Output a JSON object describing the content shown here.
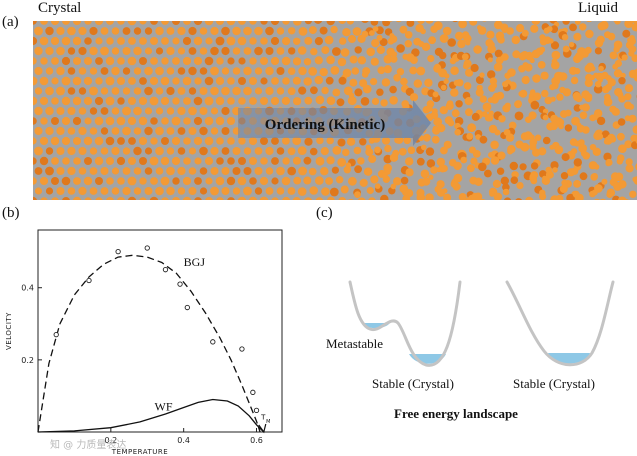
{
  "panel_a": {
    "label": "(a)",
    "left_label": "Crystal",
    "right_label": "Liquid",
    "arrow_label": "Ordering (Kinetic)",
    "colors": {
      "background": "#a4a4a4",
      "particle": "#f39a35",
      "particle_dark": "#e0781b",
      "arrow": "#6f86a8"
    }
  },
  "panel_b": {
    "label": "(b)",
    "chart_data": {
      "type": "line",
      "xlabel": "TEMPERATURE",
      "ylabel": "VELOCITY",
      "xlim": [
        0,
        0.67
      ],
      "ylim": [
        0,
        0.56
      ],
      "x_ticks": [
        0.2,
        0.4,
        0.6
      ],
      "y_ticks": [
        0.2,
        0.4
      ],
      "series": [
        {
          "name": "BGJ",
          "style": "dashed",
          "x": [
            0.0,
            0.03,
            0.06,
            0.1,
            0.14,
            0.18,
            0.22,
            0.26,
            0.3,
            0.34,
            0.38,
            0.42,
            0.46,
            0.5,
            0.53,
            0.56,
            0.58,
            0.6,
            0.61
          ],
          "y": [
            0.0,
            0.19,
            0.3,
            0.38,
            0.43,
            0.465,
            0.485,
            0.49,
            0.485,
            0.47,
            0.44,
            0.39,
            0.33,
            0.26,
            0.2,
            0.13,
            0.08,
            0.03,
            0.0
          ]
        },
        {
          "name": "WF",
          "style": "solid",
          "x": [
            0.0,
            0.1,
            0.2,
            0.28,
            0.35,
            0.4,
            0.44,
            0.48,
            0.52,
            0.55,
            0.58,
            0.6,
            0.62
          ],
          "y": [
            0.0,
            0.003,
            0.012,
            0.028,
            0.05,
            0.068,
            0.082,
            0.09,
            0.086,
            0.072,
            0.045,
            0.02,
            0.0
          ]
        }
      ],
      "points": {
        "x": [
          0.05,
          0.14,
          0.22,
          0.3,
          0.35,
          0.39,
          0.41,
          0.48,
          0.56,
          0.59,
          0.6
        ],
        "y": [
          0.27,
          0.42,
          0.5,
          0.51,
          0.45,
          0.41,
          0.345,
          0.25,
          0.23,
          0.11,
          0.06
        ]
      },
      "annotations": {
        "tm": "T",
        "tm_sub": "M",
        "tm_x": 0.61
      }
    }
  },
  "panel_c": {
    "label": "(c)",
    "metastable": "Metastable",
    "stable_left": "Stable (Crystal)",
    "stable_right": "Stable (Crystal)",
    "caption": "Free energy landscape",
    "colors": {
      "curve": "#c4c4c4",
      "liquid": "#8ec8e6"
    }
  },
  "watermark": "知 @ 力质量表达"
}
